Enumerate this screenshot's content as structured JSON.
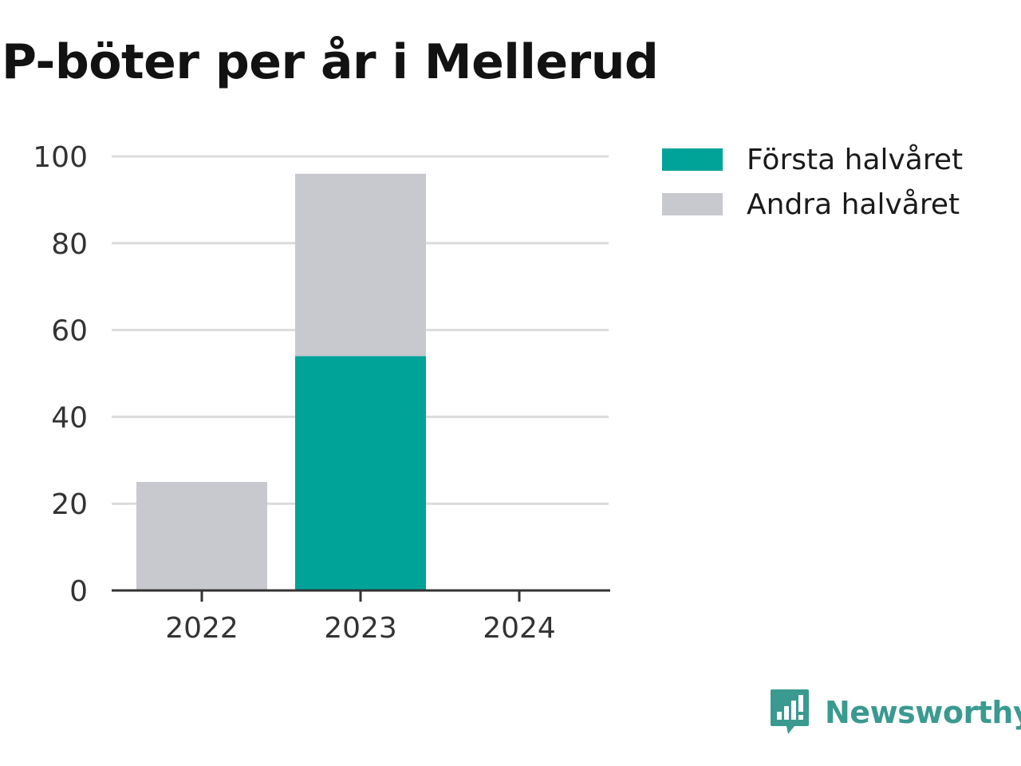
{
  "title": "P-böter per år i Mellerud",
  "chart_data": {
    "type": "bar",
    "stacked": true,
    "title": "P-böter per år i Mellerud",
    "xlabel": "",
    "ylabel": "",
    "categories": [
      "2022",
      "2023",
      "2024"
    ],
    "series": [
      {
        "name": "Första halvåret",
        "color": "#00a398",
        "values": [
          0,
          54,
          0
        ]
      },
      {
        "name": "Andra halvåret",
        "color": "#c8c8cf",
        "values": [
          25,
          42,
          0
        ]
      }
    ],
    "ylim": [
      0,
      100
    ],
    "yticks": [
      0,
      20,
      40,
      60,
      80,
      100
    ],
    "grid": true,
    "legend_position": "right"
  },
  "legend": [
    {
      "label": "Första halvåret",
      "color": "#00a398"
    },
    {
      "label": "Andra halvåret",
      "color": "#c8c8cf"
    }
  ],
  "brand": {
    "name": "Newsworthy",
    "color": "#3a9a90",
    "icon": "newsworthy-logo-icon"
  }
}
